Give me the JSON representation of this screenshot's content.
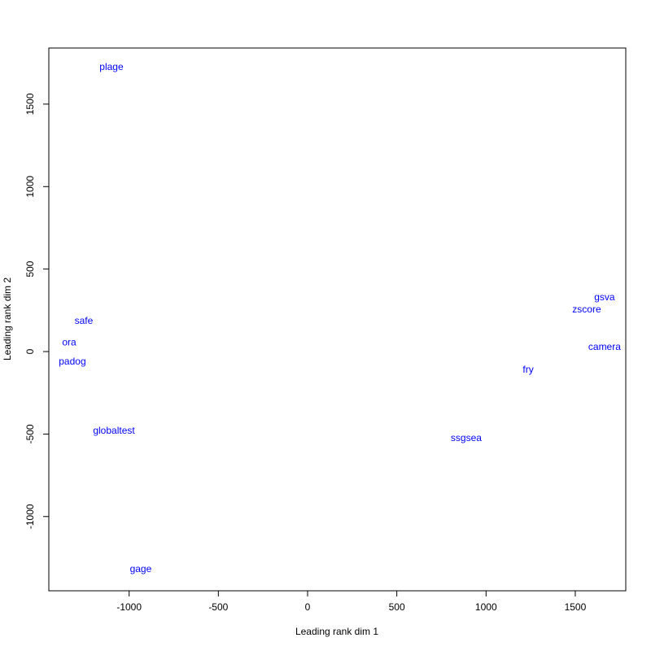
{
  "chart_data": {
    "type": "scatter",
    "xlabel": "Leading rank dim 1",
    "ylabel": "Leading rank dim 2",
    "labels": [
      "plage",
      "safe",
      "ora",
      "padog",
      "globaltest",
      "gage",
      "ssgsea",
      "fry",
      "camera",
      "zscore",
      "gsva"
    ],
    "x": [
      -1099,
      -1254,
      -1336,
      -1318,
      -1085,
      -935,
      889,
      1236,
      1664,
      1564,
      1664
    ],
    "y": [
      1722,
      183,
      54,
      -64,
      -483,
      -1322,
      -528,
      -113,
      25,
      252,
      326
    ],
    "color": "#0000ff",
    "xlim": [
      -1450,
      1783
    ],
    "ylim": [
      -1450,
      1840
    ],
    "xticks": [
      -1000,
      -500,
      0,
      500,
      1000,
      1500
    ],
    "yticks": [
      -1000,
      -500,
      0,
      500,
      1000,
      1500
    ]
  }
}
